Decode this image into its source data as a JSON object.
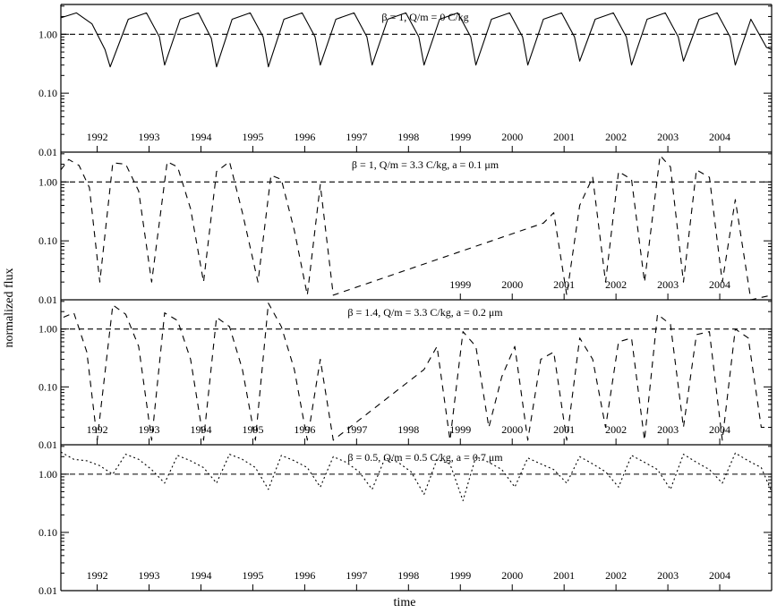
{
  "figure": {
    "ylabel": "normalized flux",
    "xlabel": "time"
  },
  "chart_data": [
    {
      "type": "line",
      "title": "β = 1, Q/m = 0 C/kg",
      "yscale": "log",
      "ylim": [
        0.01,
        3.2
      ],
      "yticks": [
        {
          "v": 0.01,
          "label": "0.01"
        },
        {
          "v": 0.1,
          "label": "0.10"
        },
        {
          "v": 1,
          "label": "1.00"
        }
      ],
      "xlim": [
        1991.3,
        2005.0
      ],
      "x_labels": [
        {
          "year": 1992,
          "label": "1992"
        },
        {
          "year": 1993,
          "label": "1993"
        },
        {
          "year": 1994,
          "label": "1994"
        },
        {
          "year": 1995,
          "label": "1995"
        },
        {
          "year": 1996,
          "label": "1996"
        },
        {
          "year": 1997,
          "label": "1997"
        },
        {
          "year": 1998,
          "label": "1998"
        },
        {
          "year": 1999,
          "label": "1999"
        },
        {
          "year": 2000,
          "label": "2000"
        },
        {
          "year": 2001,
          "label": "2001"
        },
        {
          "year": 2002,
          "label": "2002"
        },
        {
          "year": 2003,
          "label": "2003"
        },
        {
          "year": 2004,
          "label": "2004"
        }
      ],
      "reference_level": 1.0,
      "series": [
        {
          "style": "solid",
          "x": [
            1991.3,
            1991.6,
            1991.9,
            1992.15,
            1992.25,
            1992.6,
            1992.95,
            1993.2,
            1993.3,
            1993.6,
            1993.95,
            1994.2,
            1994.3,
            1994.6,
            1994.95,
            1995.2,
            1995.3,
            1995.6,
            1995.95,
            1996.2,
            1996.3,
            1996.6,
            1996.95,
            1997.2,
            1997.3,
            1997.6,
            1997.95,
            1998.2,
            1998.3,
            1998.6,
            1998.95,
            1999.2,
            1999.3,
            1999.6,
            1999.95,
            2000.2,
            2000.3,
            2000.6,
            2000.95,
            2001.2,
            2001.3,
            2001.6,
            2001.95,
            2002.2,
            2002.3,
            2002.6,
            2002.95,
            2003.2,
            2003.3,
            2003.6,
            2003.95,
            2004.2,
            2004.3,
            2004.6,
            2004.9,
            2005.0
          ],
          "y": [
            1.9,
            2.3,
            1.5,
            0.55,
            0.28,
            1.8,
            2.3,
            0.9,
            0.3,
            1.8,
            2.3,
            0.85,
            0.28,
            1.8,
            2.3,
            0.9,
            0.28,
            1.8,
            2.3,
            0.9,
            0.3,
            1.8,
            2.3,
            0.9,
            0.3,
            1.8,
            2.3,
            0.9,
            0.3,
            1.8,
            2.3,
            0.9,
            0.3,
            1.8,
            2.3,
            0.9,
            0.3,
            1.8,
            2.3,
            0.9,
            0.35,
            1.8,
            2.3,
            0.9,
            0.3,
            1.8,
            2.3,
            0.9,
            0.35,
            1.8,
            2.3,
            0.9,
            0.3,
            1.8,
            0.6,
            0.55
          ]
        }
      ]
    },
    {
      "type": "line",
      "title": "β = 1, Q/m = 3.3 C/kg, a = 0.1 μm",
      "yscale": "log",
      "ylim": [
        0.01,
        3.2
      ],
      "yticks": [
        {
          "v": 0.01,
          "label": "0.01"
        },
        {
          "v": 0.1,
          "label": "0.10"
        },
        {
          "v": 1,
          "label": "1.00"
        }
      ],
      "xlim": [
        1991.3,
        2005.0
      ],
      "x_labels": [
        {
          "year": 1999,
          "label": "1999"
        },
        {
          "year": 2000,
          "label": "2000"
        },
        {
          "year": 2001,
          "label": "2001"
        },
        {
          "year": 2002,
          "label": "2002"
        },
        {
          "year": 2003,
          "label": "2003"
        },
        {
          "year": 2004,
          "label": "2004"
        }
      ],
      "reference_level": 1.0,
      "series": [
        {
          "style": "dashed",
          "x": [
            1991.3,
            1991.45,
            1991.65,
            1991.85,
            1992.05,
            1992.3,
            1992.55,
            1992.8,
            1993.05,
            1993.35,
            1993.55,
            1993.8,
            1994.05,
            1994.3,
            1994.55,
            1994.8,
            1995.1,
            1995.35,
            1995.55,
            1995.8,
            1996.05,
            1996.3,
            1996.55,
            2000.6,
            2000.8,
            2001.05,
            2001.3,
            2001.55,
            2001.8,
            2002.05,
            2002.3,
            2002.55,
            2002.85,
            2003.05,
            2003.3,
            2003.55,
            2003.8,
            2004.05,
            2004.3,
            2004.6,
            2005.0
          ],
          "y": [
            1.6,
            2.4,
            1.9,
            0.8,
            0.02,
            2.1,
            2.0,
            0.7,
            0.02,
            2.2,
            1.8,
            0.35,
            0.02,
            1.5,
            2.2,
            0.3,
            0.02,
            1.3,
            1.1,
            0.15,
            0.012,
            0.9,
            0.012,
            0.2,
            0.3,
            0.012,
            0.4,
            1.2,
            0.02,
            1.5,
            1.1,
            0.02,
            2.8,
            1.8,
            0.02,
            1.6,
            1.2,
            0.02,
            0.5,
            0.01,
            0.012
          ]
        }
      ]
    },
    {
      "type": "line",
      "title": "β = 1.4, Q/m = 3.3 C/kg, a = 0.2 μm",
      "yscale": "log",
      "ylim": [
        0.01,
        3.2
      ],
      "yticks": [
        {
          "v": 0.01,
          "label": "0.01"
        },
        {
          "v": 0.1,
          "label": "0.10"
        },
        {
          "v": 1,
          "label": "1.00"
        }
      ],
      "xlim": [
        1991.3,
        2005.0
      ],
      "x_labels": [
        {
          "year": 1992,
          "label": "1992"
        },
        {
          "year": 1993,
          "label": "1993"
        },
        {
          "year": 1994,
          "label": "1994"
        },
        {
          "year": 1995,
          "label": "1995"
        },
        {
          "year": 1996,
          "label": "1996"
        },
        {
          "year": 1997,
          "label": "1997"
        },
        {
          "year": 1998,
          "label": "1998"
        },
        {
          "year": 1999,
          "label": "1999"
        },
        {
          "year": 2000,
          "label": "2000"
        },
        {
          "year": 2001,
          "label": "2001"
        },
        {
          "year": 2002,
          "label": "2002"
        },
        {
          "year": 2003,
          "label": "2003"
        },
        {
          "year": 2004,
          "label": "2004"
        }
      ],
      "reference_level": 1.0,
      "series": [
        {
          "style": "dashed",
          "x": [
            1991.35,
            1991.55,
            1991.8,
            1992.0,
            1992.3,
            1992.55,
            1992.8,
            1993.05,
            1993.3,
            1993.55,
            1993.8,
            1994.05,
            1994.3,
            1994.55,
            1994.8,
            1995.05,
            1995.3,
            1995.55,
            1995.8,
            1996.05,
            1996.3,
            1996.55,
            1998.3,
            1998.55,
            1998.8,
            1999.05,
            1999.3,
            1999.55,
            1999.8,
            2000.05,
            2000.3,
            2000.55,
            2000.8,
            2001.05,
            2001.3,
            2001.55,
            2001.8,
            2002.05,
            2002.3,
            2002.55,
            2002.8,
            2003.05,
            2003.3,
            2003.55,
            2003.8,
            2004.05,
            2004.3,
            2004.55,
            2004.8,
            2005.0
          ],
          "y": [
            1.6,
            1.9,
            0.4,
            0.012,
            2.6,
            1.8,
            0.5,
            0.012,
            1.9,
            1.4,
            0.3,
            0.012,
            1.6,
            1.1,
            0.2,
            0.012,
            2.8,
            1.1,
            0.2,
            0.012,
            0.3,
            0.012,
            0.2,
            0.5,
            0.012,
            0.9,
            0.5,
            0.02,
            0.15,
            0.5,
            0.012,
            0.3,
            0.4,
            0.012,
            0.7,
            0.3,
            0.02,
            0.6,
            0.7,
            0.012,
            1.8,
            1.2,
            0.02,
            0.8,
            0.9,
            0.012,
            1.0,
            0.7,
            0.02,
            0.02
          ]
        }
      ]
    },
    {
      "type": "line",
      "title": "β = 0.5, Q/m = 0.5 C/kg, a = 0.7 μm",
      "yscale": "log",
      "ylim": [
        0.01,
        3.2
      ],
      "yticks": [
        {
          "v": 0.01,
          "label": "0.01"
        },
        {
          "v": 0.1,
          "label": "0.10"
        },
        {
          "v": 1,
          "label": "1.00"
        }
      ],
      "xlim": [
        1991.3,
        2005.0
      ],
      "x_labels": [
        {
          "year": 1992,
          "label": "1992"
        },
        {
          "year": 1993,
          "label": "1993"
        },
        {
          "year": 1994,
          "label": "1994"
        },
        {
          "year": 1995,
          "label": "1995"
        },
        {
          "year": 1996,
          "label": "1996"
        },
        {
          "year": 1997,
          "label": "1997"
        },
        {
          "year": 1998,
          "label": "1998"
        },
        {
          "year": 1999,
          "label": "1999"
        },
        {
          "year": 2000,
          "label": "2000"
        },
        {
          "year": 2001,
          "label": "2001"
        },
        {
          "year": 2002,
          "label": "2002"
        },
        {
          "year": 2003,
          "label": "2003"
        },
        {
          "year": 2004,
          "label": "2004"
        }
      ],
      "reference_level": 1.0,
      "series": [
        {
          "style": "dotted",
          "x": [
            1991.3,
            1991.55,
            1991.8,
            1992.05,
            1992.3,
            1992.55,
            1992.8,
            1993.05,
            1993.3,
            1993.55,
            1993.8,
            1994.05,
            1994.3,
            1994.55,
            1994.8,
            1995.05,
            1995.3,
            1995.55,
            1995.8,
            1996.05,
            1996.3,
            1996.55,
            1996.8,
            1997.05,
            1997.3,
            1997.55,
            1997.8,
            1998.05,
            1998.3,
            1998.55,
            1998.8,
            1999.05,
            1999.3,
            1999.55,
            1999.8,
            2000.05,
            2000.3,
            2000.55,
            2000.8,
            2001.05,
            2001.3,
            2001.55,
            2001.8,
            2002.05,
            2002.3,
            2002.55,
            2002.8,
            2003.05,
            2003.3,
            2003.55,
            2003.8,
            2004.05,
            2004.3,
            2004.55,
            2004.8,
            2005.0
          ],
          "y": [
            2.4,
            1.8,
            1.7,
            1.4,
            1.0,
            2.2,
            1.8,
            1.2,
            0.7,
            2.1,
            1.7,
            1.3,
            0.7,
            2.2,
            1.8,
            1.3,
            0.55,
            2.1,
            1.7,
            1.3,
            0.6,
            2.0,
            1.6,
            1.1,
            0.55,
            1.9,
            1.6,
            1.1,
            0.45,
            1.8,
            1.5,
            0.35,
            2.0,
            1.6,
            1.2,
            0.6,
            1.9,
            1.5,
            1.2,
            0.7,
            2.0,
            1.5,
            1.1,
            0.6,
            2.1,
            1.6,
            1.2,
            0.55,
            2.2,
            1.6,
            1.2,
            0.7,
            2.3,
            1.7,
            1.3,
            0.5
          ]
        }
      ]
    }
  ]
}
